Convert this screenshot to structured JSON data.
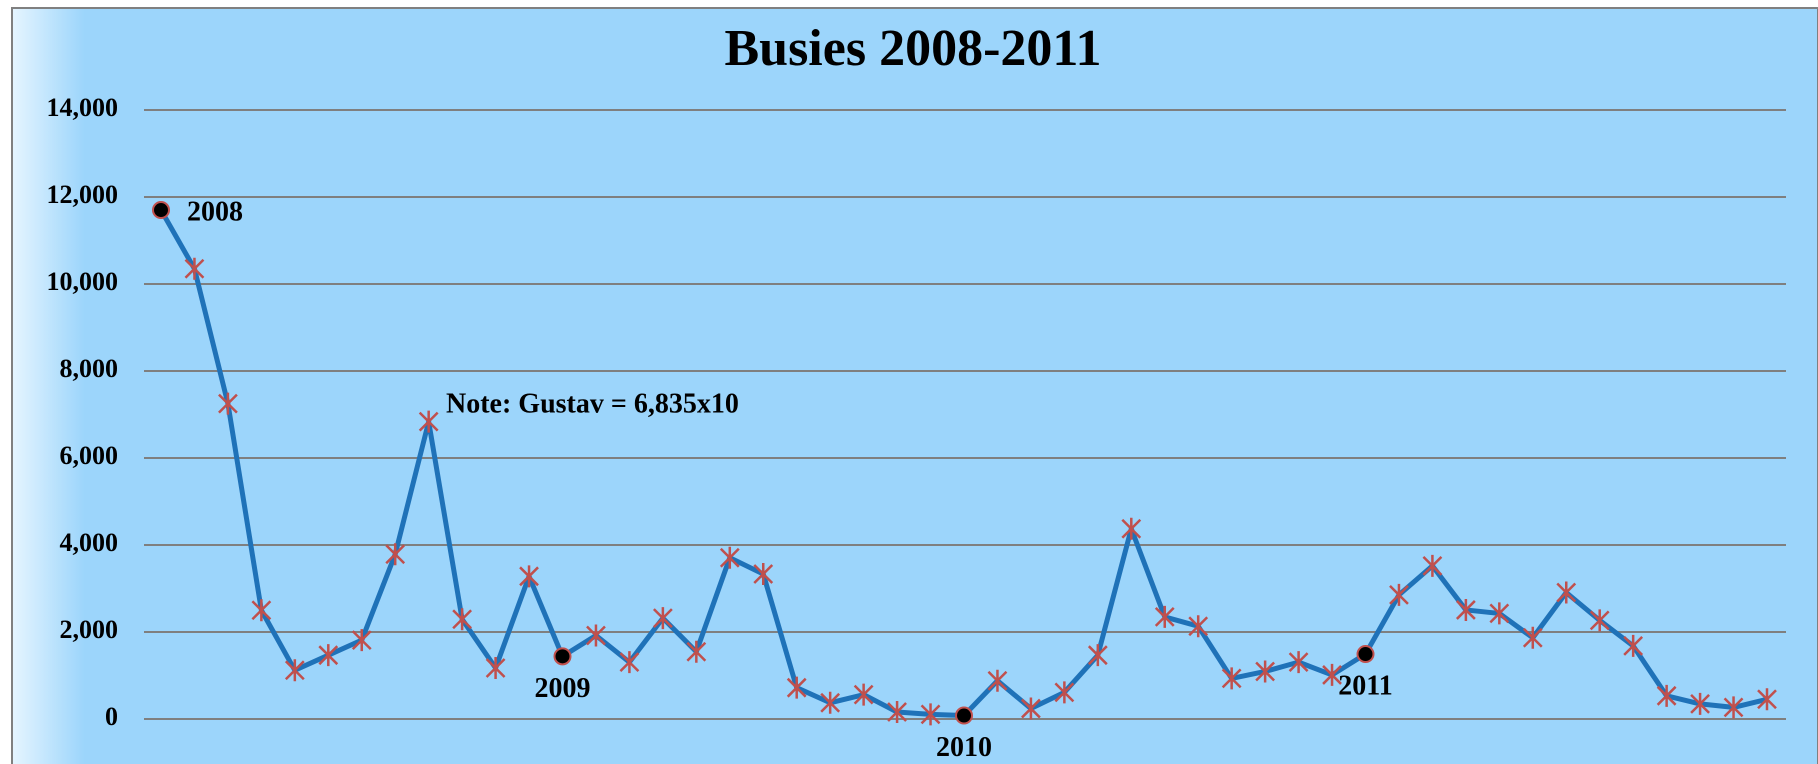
{
  "chart_data": {
    "type": "line",
    "title": "Busies 2008-2011",
    "categories": [
      "2008",
      null,
      null,
      null,
      null,
      null,
      null,
      null,
      null,
      null,
      null,
      null,
      "2009",
      null,
      null,
      null,
      null,
      null,
      null,
      null,
      null,
      null,
      null,
      null,
      "2010",
      null,
      null,
      null,
      null,
      null,
      null,
      null,
      null,
      null,
      null,
      null,
      "2011",
      null,
      null,
      null,
      null,
      null,
      null,
      null,
      null,
      null,
      null,
      null,
      null
    ],
    "series": [
      {
        "name": "Busies",
        "color": "#1f72b8",
        "marker_color": "#c0504d",
        "values": [
          11700,
          10350,
          7250,
          2500,
          1120,
          1467,
          1813,
          3787,
          6835,
          2293,
          1173,
          3280,
          1440,
          1920,
          1307,
          2320,
          1547,
          3707,
          3333,
          720,
          373,
          560,
          160,
          107,
          80,
          880,
          240,
          613,
          1467,
          4373,
          2347,
          2133,
          933,
          1093,
          1307,
          1013,
          1493,
          2853,
          3520,
          2507,
          2427,
          1867,
          2907,
          2267,
          1680,
          533,
          347,
          267,
          453
        ]
      }
    ],
    "annotations": [
      "Note: Gustav = 6,835x10"
    ],
    "ylim": [
      0,
      14000
    ],
    "yticks": [
      {
        "value": 0,
        "label": "0"
      },
      {
        "value": 2000,
        "label": "2,000"
      },
      {
        "value": 4000,
        "label": "4,000"
      },
      {
        "value": 6000,
        "label": "6,000"
      },
      {
        "value": 8000,
        "label": "8,000"
      },
      {
        "value": 10000,
        "label": "10,000"
      },
      {
        "value": 12000,
        "label": "12,000"
      },
      {
        "value": 14000,
        "label": "14,000"
      }
    ],
    "grid": true
  }
}
